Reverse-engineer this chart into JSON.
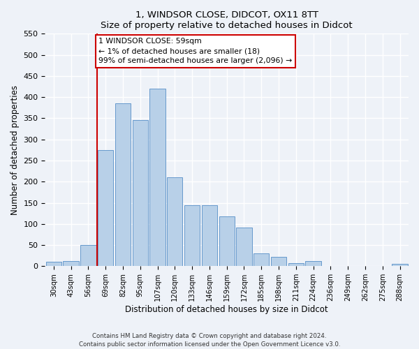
{
  "title": "1, WINDSOR CLOSE, DIDCOT, OX11 8TT",
  "subtitle": "Size of property relative to detached houses in Didcot",
  "xlabel": "Distribution of detached houses by size in Didcot",
  "ylabel": "Number of detached properties",
  "bar_labels": [
    "30sqm",
    "43sqm",
    "56sqm",
    "69sqm",
    "82sqm",
    "95sqm",
    "107sqm",
    "120sqm",
    "133sqm",
    "146sqm",
    "159sqm",
    "172sqm",
    "185sqm",
    "198sqm",
    "211sqm",
    "224sqm",
    "236sqm",
    "249sqm",
    "262sqm",
    "275sqm",
    "288sqm"
  ],
  "bar_values": [
    10,
    12,
    50,
    275,
    385,
    345,
    420,
    210,
    145,
    145,
    118,
    92,
    31,
    22,
    8,
    12,
    0,
    0,
    0,
    0,
    5
  ],
  "bar_color": "#b8d0e8",
  "bar_edge_color": "#6699cc",
  "ylim": [
    0,
    550
  ],
  "yticks": [
    0,
    50,
    100,
    150,
    200,
    250,
    300,
    350,
    400,
    450,
    500,
    550
  ],
  "vline_x_index": 2,
  "vline_color": "#cc0000",
  "annotation_text": "1 WINDSOR CLOSE: 59sqm\n← 1% of detached houses are smaller (18)\n99% of semi-detached houses are larger (2,096) →",
  "annotation_box_color": "#ffffff",
  "annotation_box_edge": "#cc0000",
  "footer1": "Contains HM Land Registry data © Crown copyright and database right 2024.",
  "footer2": "Contains public sector information licensed under the Open Government Licence v3.0.",
  "bg_color": "#eef2f8",
  "grid_color": "#d0d8e8"
}
